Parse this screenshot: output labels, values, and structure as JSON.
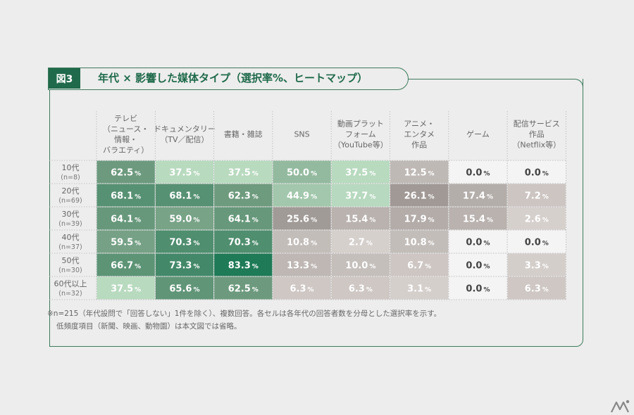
{
  "figure": {
    "label": "図3",
    "title": "年代 × 影響した媒体タイプ（選択率%、ヒートマップ）"
  },
  "chart_data": {
    "type": "heatmap",
    "title": "年代 × 影響した媒体タイプ（選択率%、ヒートマップ）",
    "columns": [
      [
        "テレビ",
        "（ニュース・",
        "情報・",
        "バラエティ）"
      ],
      [
        "ドキュメンタリー",
        "（TV／配信）"
      ],
      [
        "書籍・雑誌"
      ],
      [
        "SNS"
      ],
      [
        "動画プラット",
        "フォーム",
        "（YouTube等）"
      ],
      [
        "アニメ・",
        "エンタメ",
        "作品"
      ],
      [
        "ゲーム"
      ],
      [
        "配信サービス",
        "作品",
        "（Netflix等）"
      ]
    ],
    "rows": [
      {
        "age": "10代",
        "n": "(n=8)",
        "values": [
          62.5,
          37.5,
          37.5,
          50.0,
          37.5,
          12.5,
          0.0,
          0.0
        ]
      },
      {
        "age": "20代",
        "n": "(n=69)",
        "values": [
          68.1,
          68.1,
          62.3,
          44.9,
          37.7,
          26.1,
          17.4,
          7.2
        ]
      },
      {
        "age": "30代",
        "n": "(n=39)",
        "values": [
          64.1,
          59.0,
          64.1,
          25.6,
          15.4,
          17.9,
          15.4,
          2.6
        ]
      },
      {
        "age": "40代",
        "n": "(n=37)",
        "values": [
          59.5,
          70.3,
          70.3,
          10.8,
          2.7,
          10.8,
          0.0,
          0.0
        ]
      },
      {
        "age": "50代",
        "n": "(n=30)",
        "values": [
          66.7,
          73.3,
          83.3,
          13.3,
          10.0,
          6.7,
          0.0,
          3.3
        ]
      },
      {
        "age": "60代以上",
        "n": "(n=32)",
        "values": [
          37.5,
          65.6,
          62.5,
          6.3,
          6.3,
          3.1,
          0.0,
          6.3
        ]
      }
    ],
    "unit": "%",
    "colors": {
      "green_high": "#1e7a57",
      "green_mid": "#6f9b7f",
      "green_low": "#bfe0c6",
      "gray_high": "#9c9592",
      "gray_low": "#dcd6d3",
      "empty": "#f4f4f4"
    }
  },
  "notes": [
    "※n=215（年代設問で「回答しない」1件を除く）、複数回答。各セルは各年代の回答者数を分母とした選択率を示す。",
    "低頻度項目（新聞、映画、動物園）は本文図では省略。"
  ],
  "logo": {
    "icon": "brand-logo-icon"
  }
}
